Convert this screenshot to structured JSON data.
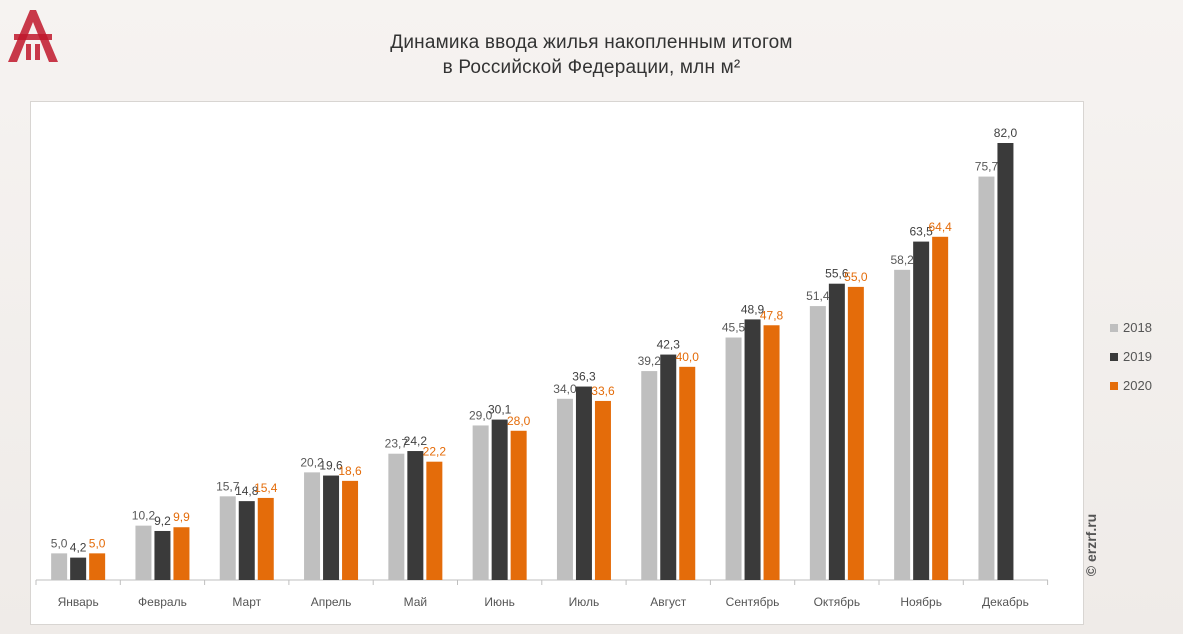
{
  "title_line1": "Динамика ввода жилья накопленным итогом",
  "title_line2": "в Российской  Федерации, млн м²",
  "watermark": "© erzrf.ru",
  "logo_icon": "erzrf-logo-icon",
  "colors": {
    "s2018": "#bfbfbf",
    "s2019": "#3a3a3a",
    "s2020": "#e46c0a",
    "label2018": "#595959",
    "label2019": "#404040",
    "label2020": "#e46c0a"
  },
  "chart_data": {
    "type": "bar",
    "title": "Динамика ввода жилья накопленным итогом в Российской  Федерации, млн м²",
    "categories": [
      "Январь",
      "Февраль",
      "Март",
      "Апрель",
      "Май",
      "Июнь",
      "Июль",
      "Август",
      "Сентябрь",
      "Октябрь",
      "Ноябрь",
      "Декабрь"
    ],
    "series": [
      {
        "name": "2018",
        "values": [
          5.0,
          10.2,
          15.7,
          20.2,
          23.7,
          29.0,
          34.0,
          39.2,
          45.5,
          51.4,
          58.2,
          75.7
        ],
        "labels": [
          "5,0",
          "10,2",
          "15,7",
          "20,2",
          "23,7",
          "29,0",
          "34,0",
          "39,2",
          "45,5",
          "51,4",
          "58,2",
          "75,7"
        ]
      },
      {
        "name": "2019",
        "values": [
          4.2,
          9.2,
          14.8,
          19.6,
          24.2,
          30.1,
          36.3,
          42.3,
          48.9,
          55.6,
          63.5,
          82.0
        ],
        "labels": [
          "4,2",
          "9,2",
          "14,8",
          "19,6",
          "24,2",
          "30,1",
          "36,3",
          "42,3",
          "48,9",
          "55,6",
          "63,5",
          "82,0"
        ]
      },
      {
        "name": "2020",
        "values": [
          5.0,
          9.9,
          15.4,
          18.6,
          22.2,
          28.0,
          33.6,
          40.0,
          47.8,
          55.0,
          64.4,
          null
        ],
        "labels": [
          "5,0",
          "9,9",
          "15,4",
          "18,6",
          "22,2",
          "28,0",
          "33,6",
          "40,0",
          "47,8",
          "55,0",
          "64,4",
          ""
        ]
      }
    ],
    "ylim": [
      0,
      82
    ],
    "grid": false,
    "legend": "right"
  }
}
